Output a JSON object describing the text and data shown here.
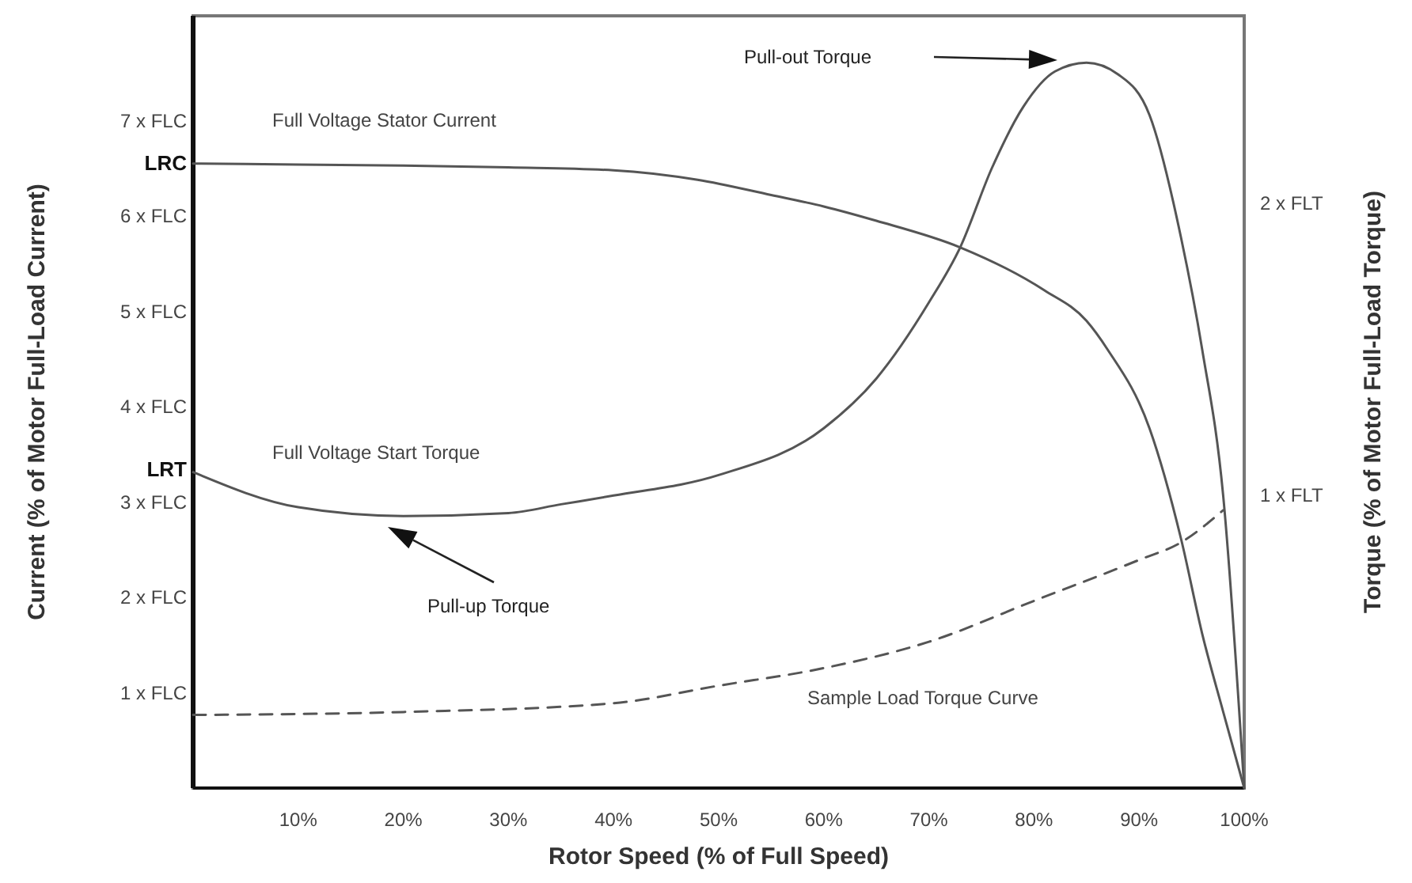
{
  "chart_data": {
    "type": "line",
    "xlabel": "Rotor Speed (% of Full Speed)",
    "ylabel": "Current (% of Motor Full-Load Current)",
    "y2label": "Torque (% of Motor Full-Load Torque)",
    "xlim": [
      0,
      100
    ],
    "xticks": [
      {
        "value": 10,
        "label": "10%"
      },
      {
        "value": 20,
        "label": "20%"
      },
      {
        "value": 30,
        "label": "30%"
      },
      {
        "value": 40,
        "label": "40%"
      },
      {
        "value": 50,
        "label": "50%"
      },
      {
        "value": 60,
        "label": "60%"
      },
      {
        "value": 70,
        "label": "70%"
      },
      {
        "value": 80,
        "label": "80%"
      },
      {
        "value": 90,
        "label": "90%"
      },
      {
        "value": 100,
        "label": "100%"
      }
    ],
    "ylim": [
      0,
      8.1
    ],
    "yticks": [
      {
        "value": 1,
        "label": "1 x FLC"
      },
      {
        "value": 2,
        "label": "2 x FLC"
      },
      {
        "value": 3,
        "label": "3 x FLC"
      },
      {
        "value": 3.34,
        "label": "LRT"
      },
      {
        "value": 4,
        "label": "4 x FLC"
      },
      {
        "value": 5,
        "label": "5 x FLC"
      },
      {
        "value": 6,
        "label": "6 x FLC"
      },
      {
        "value": 6.55,
        "label": "LRC"
      },
      {
        "value": 7,
        "label": "7 x FLC"
      }
    ],
    "y2lim": [
      0,
      2.64
    ],
    "y2ticks": [
      {
        "value": 1,
        "label": "1 x FLT"
      },
      {
        "value": 2,
        "label": "2 x FLT"
      }
    ],
    "marker": "none",
    "series": [
      {
        "name": "Full Voltage Stator Current",
        "color": "#555555",
        "x": [
          0,
          10,
          20,
          30,
          40,
          48,
          55,
          60,
          65,
          73,
          81,
          85,
          87,
          91,
          94,
          96,
          98,
          100
        ],
        "values": [
          6.55,
          6.54,
          6.53,
          6.51,
          6.48,
          6.38,
          6.22,
          6.1,
          5.95,
          5.67,
          5.22,
          4.9,
          4.6,
          3.77,
          2.61,
          1.62,
          0.8,
          0
        ]
      },
      {
        "name": "Full Voltage Start Torque",
        "color": "#555555",
        "axis": "y2",
        "x": [
          0,
          10,
          20,
          30,
          35,
          40,
          50,
          60,
          65,
          70,
          73,
          76,
          79,
          82,
          85,
          88,
          91,
          94,
          96,
          98,
          100
        ],
        "values": [
          1.08,
          0.96,
          0.93,
          0.94,
          0.97,
          1.0,
          1.07,
          1.23,
          1.4,
          1.66,
          1.85,
          2.12,
          2.33,
          2.45,
          2.48,
          2.44,
          2.3,
          1.88,
          1.5,
          1.0,
          0
        ]
      },
      {
        "name": "Sample Load Torque Curve",
        "color": "#555555",
        "axis": "y2",
        "line_style": "dashed",
        "x": [
          0,
          20,
          40,
          50,
          60,
          70,
          80,
          90,
          94,
          98
        ],
        "values": [
          0.25,
          0.26,
          0.29,
          0.35,
          0.41,
          0.5,
          0.64,
          0.78,
          0.84,
          0.95
        ]
      }
    ],
    "annotations": [
      "Pull-out Torque",
      "Pull-up Torque"
    ]
  }
}
